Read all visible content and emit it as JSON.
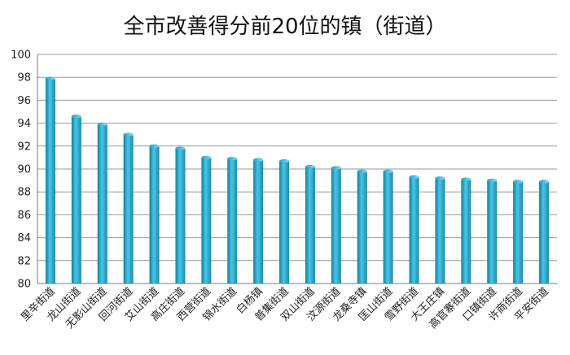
{
  "chart_data": {
    "type": "bar",
    "title": "全市改善得分前20位的镇（街道）",
    "xlabel": "",
    "ylabel": "",
    "ylim": [
      80,
      100
    ],
    "yticks": [
      80,
      82,
      84,
      86,
      88,
      90,
      92,
      94,
      96,
      98,
      100
    ],
    "grid": true,
    "legend": "none",
    "bar_color": "#2aa7c9",
    "categories": [
      "里辛街道",
      "龙山街道",
      "无影山街道",
      "回河街道",
      "艾山街道",
      "高庄街道",
      "西营街道",
      "锦水街道",
      "白杨镇",
      "普集街道",
      "双山街道",
      "汶源街道",
      "龙桑寺镇",
      "匡山街道",
      "雪野街道",
      "大王庄镇",
      "高官寨街道",
      "口镇街道",
      "许商街道",
      "平安街道"
    ],
    "values": [
      97.9,
      94.6,
      93.9,
      93.0,
      92.0,
      91.8,
      91.0,
      90.9,
      90.8,
      90.7,
      90.2,
      90.1,
      89.8,
      89.8,
      89.3,
      89.2,
      89.1,
      89.0,
      88.9,
      88.9
    ]
  }
}
